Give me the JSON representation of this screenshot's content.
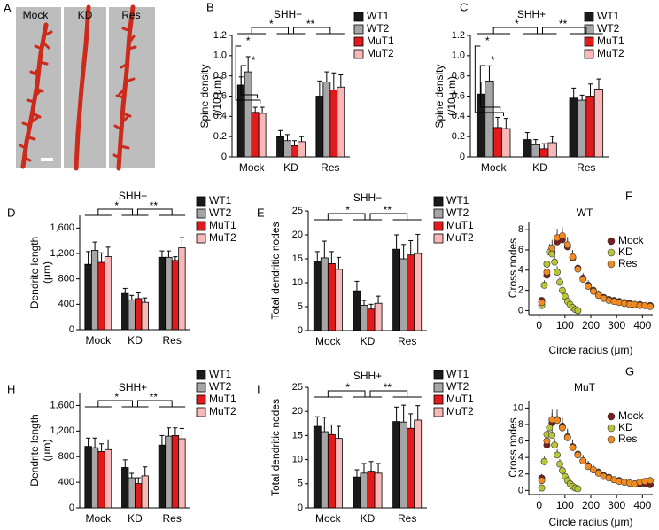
{
  "panel_a": {
    "panel": "A",
    "labels": [
      "Mock",
      "KD",
      "Res"
    ]
  },
  "chart_data": [
    {
      "panel": "B",
      "type": "bar",
      "title": "SHH−",
      "ylabel": [
        "Spine density",
        "(/10 μm)"
      ],
      "categories": [
        "Mock",
        "KD",
        "Res"
      ],
      "series": [
        {
          "name": "WT1",
          "color": "#1a1a1a",
          "values": [
            0.71,
            0.2,
            0.6
          ],
          "errors": [
            0.08,
            0.06,
            0.15
          ]
        },
        {
          "name": "WT2",
          "color": "#a6a6a6",
          "values": [
            0.84,
            0.16,
            0.74
          ],
          "errors": [
            0.15,
            0.06,
            0.1
          ]
        },
        {
          "name": "MuT1",
          "color": "#e31a1c",
          "values": [
            0.44,
            0.11,
            0.66
          ],
          "errors": [
            0.05,
            0.05,
            0.17
          ]
        },
        {
          "name": "MuT2",
          "color": "#f9b8b8",
          "values": [
            0.43,
            0.15,
            0.69
          ],
          "errors": [
            0.06,
            0.05,
            0.12
          ]
        }
      ],
      "ylim": [
        0,
        1.2
      ],
      "yticks": [
        0,
        0.2,
        0.4,
        0.6,
        0.8,
        {
          "value": 1,
          "label": "1.0"
        },
        1.2
      ],
      "significance": [
        "*",
        "**"
      ],
      "significance_mock": [
        "*",
        "*"
      ]
    },
    {
      "panel": "C",
      "type": "bar",
      "title": "SHH+",
      "ylabel": [
        "Spine density",
        "(/10 μm)"
      ],
      "categories": [
        "Mock",
        "KD",
        "Res"
      ],
      "series": [
        {
          "name": "WT1",
          "color": "#1a1a1a",
          "values": [
            0.62,
            0.17,
            0.58
          ],
          "errors": [
            0.12,
            0.07,
            0.1
          ]
        },
        {
          "name": "WT2",
          "color": "#a6a6a6",
          "values": [
            0.75,
            0.12,
            0.56
          ],
          "errors": [
            0.15,
            0.05,
            0.05
          ]
        },
        {
          "name": "MuT1",
          "color": "#e31a1c",
          "values": [
            0.29,
            0.08,
            0.6
          ],
          "errors": [
            0.1,
            0.05,
            0.12
          ]
        },
        {
          "name": "MuT2",
          "color": "#f9b8b8",
          "values": [
            0.28,
            0.14,
            0.67
          ],
          "errors": [
            0.1,
            0.06,
            0.1
          ]
        }
      ],
      "ylim": [
        0,
        1.2
      ],
      "yticks": [
        0,
        0.2,
        0.4,
        0.6,
        0.8,
        {
          "value": 1,
          "label": "1.0"
        },
        1.2
      ],
      "significance": [
        "*",
        "**"
      ],
      "significance_mock": [
        "*",
        "*"
      ]
    },
    {
      "panel": "D",
      "type": "bar",
      "title": "SHH−",
      "ylabel": [
        "Dendrite length",
        "(μm)"
      ],
      "categories": [
        "Mock",
        "KD",
        "Res"
      ],
      "series": [
        {
          "name": "WT1",
          "color": "#1a1a1a",
          "values": [
            1030,
            570,
            1140
          ],
          "errors": [
            200,
            80,
            100
          ]
        },
        {
          "name": "WT2",
          "color": "#a6a6a6",
          "values": [
            1250,
            470,
            1140
          ],
          "errors": [
            130,
            70,
            100
          ]
        },
        {
          "name": "MuT1",
          "color": "#e31a1c",
          "values": [
            1060,
            490,
            1090
          ],
          "errors": [
            150,
            90,
            60
          ]
        },
        {
          "name": "MuT2",
          "color": "#f9b8b8",
          "values": [
            1150,
            430,
            1290
          ],
          "errors": [
            150,
            70,
            160
          ]
        }
      ],
      "ylim": [
        0,
        1800
      ],
      "yticks": [
        0,
        400,
        800,
        {
          "value": 1200,
          "label": "1,200"
        },
        {
          "value": 1600,
          "label": "1,600"
        }
      ],
      "significance": [
        "*",
        "**"
      ]
    },
    {
      "panel": "E",
      "type": "bar",
      "title": "SHH−",
      "ylabel": [
        "Total dendritic nodes"
      ],
      "categories": [
        "Mock",
        "KD",
        "Res"
      ],
      "series": [
        {
          "name": "WT1",
          "color": "#1a1a1a",
          "values": [
            14.5,
            8.3,
            17.0
          ],
          "errors": [
            2,
            2,
            3
          ]
        },
        {
          "name": "WT2",
          "color": "#a6a6a6",
          "values": [
            15.2,
            5.3,
            15.0
          ],
          "errors": [
            3.5,
            1,
            3
          ]
        },
        {
          "name": "MuT1",
          "color": "#e31a1c",
          "values": [
            14.0,
            4.5,
            15.8
          ],
          "errors": [
            2.5,
            1,
            3
          ]
        },
        {
          "name": "MuT2",
          "color": "#f9b8b8",
          "values": [
            12.8,
            5.7,
            16.1
          ],
          "errors": [
            2.5,
            1.5,
            4
          ]
        }
      ],
      "ylim": [
        0,
        25
      ],
      "yticks": [
        0,
        5,
        10,
        15,
        20,
        25
      ],
      "significance": [
        "*",
        "**"
      ]
    },
    {
      "panel": "F",
      "type": "scatter",
      "title": "WT",
      "xlabel": "Circle radius (μm)",
      "ylabel": [
        "Cross nodes"
      ],
      "series": [
        {
          "name": "Mock",
          "color": "#7a1f1f",
          "x": [
            10,
            30,
            50,
            70,
            90,
            110,
            130,
            150,
            170,
            190,
            210,
            230,
            250,
            270,
            290,
            310,
            330,
            350,
            370,
            390,
            410,
            430
          ],
          "values": [
            1.0,
            3.5,
            5.8,
            6.8,
            7.0,
            6.3,
            5.2,
            4.2,
            3.2,
            2.5,
            2.0,
            1.6,
            1.3,
            1.1,
            1.0,
            0.9,
            0.8,
            0.7,
            0.6,
            0.6,
            0.5,
            0.5
          ],
          "errors": [
            0.3,
            0.6,
            0.8,
            0.9,
            0.9,
            0.8,
            0.7,
            0.6,
            0.5,
            0.5,
            0.4,
            0.4,
            0.3,
            0.3,
            0.3,
            0.3,
            0.2,
            0.2,
            0.2,
            0.2,
            0.2,
            0.2
          ]
        },
        {
          "name": "KD",
          "color": "#b8c43a",
          "x": [
            10,
            20,
            30,
            40,
            50,
            60,
            70,
            80,
            90,
            100,
            110,
            120,
            130,
            140,
            150
          ],
          "values": [
            0.5,
            2.5,
            4.6,
            5.8,
            5.6,
            4.8,
            3.8,
            2.8,
            2.0,
            1.4,
            0.9,
            0.6,
            0.3,
            0.1,
            0.0
          ],
          "errors": [
            0.2,
            0.5,
            0.7,
            0.8,
            0.8,
            0.7,
            0.6,
            0.5,
            0.4,
            0.3,
            0.3,
            0.2,
            0.2,
            0.1,
            0.1
          ]
        },
        {
          "name": "Res",
          "color": "#f28a1f",
          "x": [
            10,
            30,
            50,
            70,
            90,
            110,
            130,
            150,
            170,
            190,
            210,
            230,
            250,
            270,
            290,
            310,
            330,
            350,
            370,
            390,
            410,
            430
          ],
          "values": [
            0.8,
            3.8,
            6.2,
            7.2,
            7.4,
            6.5,
            5.3,
            4.1,
            3.1,
            2.4,
            1.9,
            1.5,
            1.2,
            1.0,
            0.9,
            0.8,
            0.7,
            0.6,
            0.6,
            0.5,
            0.5,
            0.4
          ],
          "errors": [
            0.3,
            0.6,
            0.8,
            0.9,
            0.9,
            0.8,
            0.7,
            0.6,
            0.5,
            0.5,
            0.4,
            0.4,
            0.3,
            0.3,
            0.3,
            0.3,
            0.2,
            0.2,
            0.2,
            0.2,
            0.2,
            0.2
          ]
        }
      ],
      "xlim": [
        -40,
        440
      ],
      "xticks": [
        0,
        100,
        200,
        300,
        400
      ],
      "ylim": [
        -0.4,
        8.8
      ],
      "yticks": [
        0,
        2,
        4,
        6,
        8
      ]
    },
    {
      "panel": "H",
      "type": "bar",
      "title": "SHH+",
      "ylabel": [
        "Dendrite length",
        "(μm)"
      ],
      "categories": [
        "Mock",
        "KD",
        "Res"
      ],
      "series": [
        {
          "name": "WT1",
          "color": "#1a1a1a",
          "values": [
            960,
            630,
            980
          ],
          "errors": [
            130,
            120,
            150
          ]
        },
        {
          "name": "WT2",
          "color": "#a6a6a6",
          "values": [
            940,
            470,
            1120
          ],
          "errors": [
            150,
            70,
            130
          ]
        },
        {
          "name": "MuT1",
          "color": "#e31a1c",
          "values": [
            880,
            380,
            1130
          ],
          "errors": [
            120,
            90,
            120
          ]
        },
        {
          "name": "MuT2",
          "color": "#f9b8b8",
          "values": [
            910,
            500,
            1080
          ],
          "errors": [
            150,
            140,
            160
          ]
        }
      ],
      "ylim": [
        0,
        1800
      ],
      "yticks": [
        0,
        400,
        800,
        {
          "value": 1200,
          "label": "1,200"
        },
        {
          "value": 1600,
          "label": "1,600"
        }
      ],
      "significance": [
        "*",
        "**"
      ]
    },
    {
      "panel": "I",
      "type": "bar",
      "title": "SHH+",
      "ylabel": [
        "Total dendritic nodes"
      ],
      "categories": [
        "Mock",
        "KD",
        "Res"
      ],
      "series": [
        {
          "name": "WT1",
          "color": "#1a1a1a",
          "values": [
            16.9,
            6.4,
            17.9
          ],
          "errors": [
            2,
            1.5,
            3
          ]
        },
        {
          "name": "WT2",
          "color": "#a6a6a6",
          "values": [
            15.8,
            7.2,
            17.8
          ],
          "errors": [
            3,
            2,
            3.5
          ]
        },
        {
          "name": "MuT1",
          "color": "#e31a1c",
          "values": [
            15.2,
            7.6,
            16.5
          ],
          "errors": [
            2,
            2,
            3
          ]
        },
        {
          "name": "MuT2",
          "color": "#f9b8b8",
          "values": [
            14.4,
            7.2,
            18.2
          ],
          "errors": [
            2.5,
            2,
            3
          ]
        }
      ],
      "ylim": [
        0,
        25
      ],
      "yticks": [
        0,
        5,
        10,
        15,
        20,
        25
      ],
      "significance": [
        "*",
        "**"
      ]
    },
    {
      "panel": "G",
      "type": "scatter",
      "title": "MuT",
      "xlabel": "Circle radius (μm)",
      "ylabel": [
        "Cross nodes"
      ],
      "series": [
        {
          "name": "Mock",
          "color": "#7a1f1f",
          "x": [
            10,
            30,
            50,
            70,
            90,
            110,
            130,
            150,
            170,
            190,
            210,
            230,
            250,
            270,
            290,
            310,
            330,
            350,
            370,
            390,
            410,
            430
          ],
          "values": [
            1.5,
            5.5,
            8.2,
            8.6,
            7.8,
            6.5,
            5.3,
            4.4,
            3.6,
            3.0,
            2.5,
            2.2,
            1.8,
            1.6,
            1.3,
            1.2,
            1.0,
            0.9,
            0.8,
            0.8,
            0.8,
            0.7
          ],
          "errors": [
            0.5,
            1.0,
            1.2,
            1.2,
            1.1,
            1.0,
            0.9,
            0.8,
            0.7,
            0.6,
            0.6,
            0.5,
            0.5,
            0.4,
            0.4,
            0.4,
            0.4,
            0.4,
            0.4,
            0.4,
            0.4,
            0.4
          ]
        },
        {
          "name": "KD",
          "color": "#b8c43a",
          "x": [
            10,
            20,
            30,
            40,
            50,
            60,
            70,
            80,
            90,
            100,
            110,
            120,
            130,
            140,
            150
          ],
          "values": [
            0.3,
            3.5,
            6.8,
            7.6,
            6.7,
            5.5,
            4.3,
            3.2,
            2.4,
            1.7,
            1.2,
            0.8,
            0.5,
            0.3,
            0.2
          ],
          "errors": [
            0.2,
            0.6,
            0.9,
            1.0,
            0.9,
            0.8,
            0.7,
            0.6,
            0.5,
            0.4,
            0.3,
            0.3,
            0.2,
            0.2,
            0.1
          ]
        },
        {
          "name": "Res",
          "color": "#f28a1f",
          "x": [
            10,
            30,
            50,
            70,
            90,
            110,
            130,
            150,
            170,
            190,
            210,
            230,
            250,
            270,
            290,
            310,
            330,
            350,
            370,
            390,
            410,
            430
          ],
          "values": [
            1.2,
            6.0,
            8.6,
            8.5,
            7.6,
            6.4,
            5.2,
            4.3,
            3.6,
            2.9,
            2.5,
            2.1,
            1.7,
            1.5,
            1.3,
            1.1,
            1.0,
            0.9,
            0.8,
            1.0,
            1.1,
            1.2
          ],
          "errors": [
            0.5,
            1.0,
            1.2,
            1.2,
            1.1,
            1.0,
            0.9,
            0.8,
            0.7,
            0.6,
            0.6,
            0.5,
            0.5,
            0.4,
            0.4,
            0.4,
            0.4,
            0.4,
            0.4,
            0.4,
            0.4,
            0.4
          ]
        }
      ],
      "xlim": [
        -40,
        440
      ],
      "xticks": [
        0,
        100,
        200,
        300,
        400
      ],
      "ylim": [
        -0.5,
        10.9
      ],
      "yticks": [
        0,
        2,
        4,
        6,
        8,
        10
      ]
    }
  ]
}
